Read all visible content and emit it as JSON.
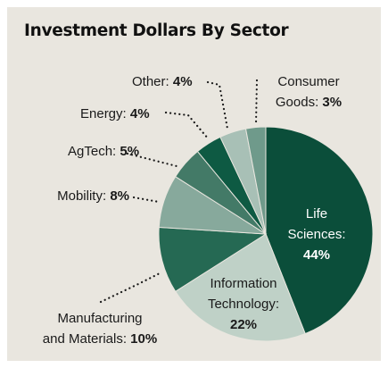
{
  "chart_data": {
    "type": "pie",
    "title": "Investment Dollars By Sector",
    "categories": [
      "Life\nSciences:",
      "Information\nTechnology:",
      "Manufacturing\nand Materials:",
      "Mobility:",
      "AgTech:",
      "Energy:",
      "Other:",
      "Consumer\nGoods:"
    ],
    "values": [
      44,
      22,
      10,
      8,
      5,
      4,
      4,
      3
    ],
    "value_labels": [
      "44%",
      "22%",
      "10%",
      "8%",
      "5%",
      "4%",
      "4%",
      "3%"
    ],
    "colors": [
      "#0b4e3a",
      "#bfd1c7",
      "#256953",
      "#87a99c",
      "#437a67",
      "#0e5a43",
      "#a8c0b6",
      "#6f9a8b"
    ]
  }
}
